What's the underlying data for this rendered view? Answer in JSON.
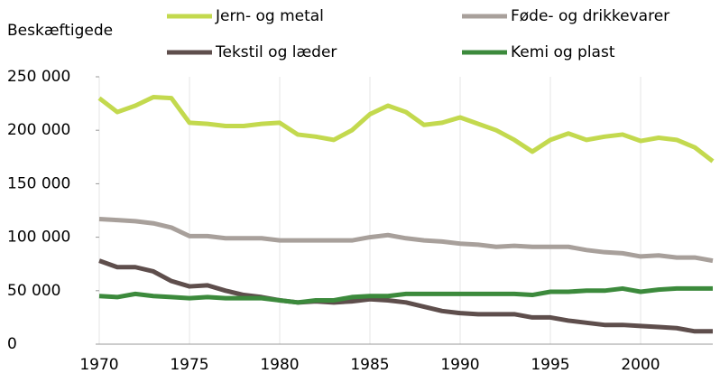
{
  "chart_data": {
    "type": "line",
    "ylabel": "Beskæftigede",
    "x": [
      1970,
      1971,
      1972,
      1973,
      1974,
      1975,
      1976,
      1977,
      1978,
      1979,
      1980,
      1981,
      1982,
      1983,
      1984,
      1985,
      1986,
      1987,
      1988,
      1989,
      1990,
      1991,
      1992,
      1993,
      1994,
      1995,
      1996,
      1997,
      1998,
      1999,
      2000,
      2001,
      2002,
      2003,
      2004
    ],
    "xlim": [
      1970,
      2004
    ],
    "xticks": [
      1970,
      1975,
      1980,
      1985,
      1990,
      1995,
      2000
    ],
    "ylim": [
      0,
      250000
    ],
    "yticks": [
      0,
      {
        "value": 50000,
        "label": "50 000"
      },
      {
        "value": 100000,
        "label": "100 000"
      },
      {
        "value": 150000,
        "label": "150 000"
      },
      {
        "value": 200000,
        "label": "200 000"
      },
      {
        "value": 250000,
        "label": "250 000"
      }
    ],
    "series": [
      {
        "name": "Jern- og metal",
        "color": "#c3d94e",
        "values": [
          230000,
          217000,
          223000,
          231000,
          230000,
          207000,
          206000,
          204000,
          204000,
          206000,
          207000,
          196000,
          194000,
          191000,
          200000,
          215000,
          223000,
          217000,
          205000,
          207000,
          212000,
          206000,
          200000,
          191000,
          180000,
          191000,
          197000,
          191000,
          194000,
          196000,
          190000,
          193000,
          191000,
          184000,
          171000
        ]
      },
      {
        "name": "Føde- og drikkevarer",
        "color": "#a8a09b",
        "values": [
          117000,
          116000,
          115000,
          113000,
          109000,
          101000,
          101000,
          99000,
          99000,
          99000,
          97000,
          97000,
          97000,
          97000,
          97000,
          100000,
          102000,
          99000,
          97000,
          96000,
          94000,
          93000,
          91000,
          92000,
          91000,
          91000,
          91000,
          88000,
          86000,
          85000,
          82000,
          83000,
          81000,
          81000,
          78000
        ]
      },
      {
        "name": "Tekstil og læder",
        "color": "#5e4e4c",
        "values": [
          78000,
          72000,
          72000,
          68000,
          59000,
          54000,
          55000,
          50000,
          46000,
          44000,
          41000,
          39000,
          40000,
          39000,
          40000,
          42000,
          41000,
          39000,
          35000,
          31000,
          29000,
          28000,
          28000,
          28000,
          25000,
          25000,
          22000,
          20000,
          18000,
          18000,
          17000,
          16000,
          15000,
          12000,
          12000
        ]
      },
      {
        "name": "Kemi og plast",
        "color": "#3c8a3c",
        "values": [
          45000,
          44000,
          47000,
          45000,
          44000,
          43000,
          44000,
          43000,
          43000,
          43000,
          41000,
          39000,
          41000,
          41000,
          44000,
          45000,
          45000,
          47000,
          47000,
          47000,
          47000,
          47000,
          47000,
          47000,
          46000,
          49000,
          49000,
          50000,
          50000,
          52000,
          49000,
          51000,
          52000,
          52000,
          52000
        ]
      }
    ]
  }
}
